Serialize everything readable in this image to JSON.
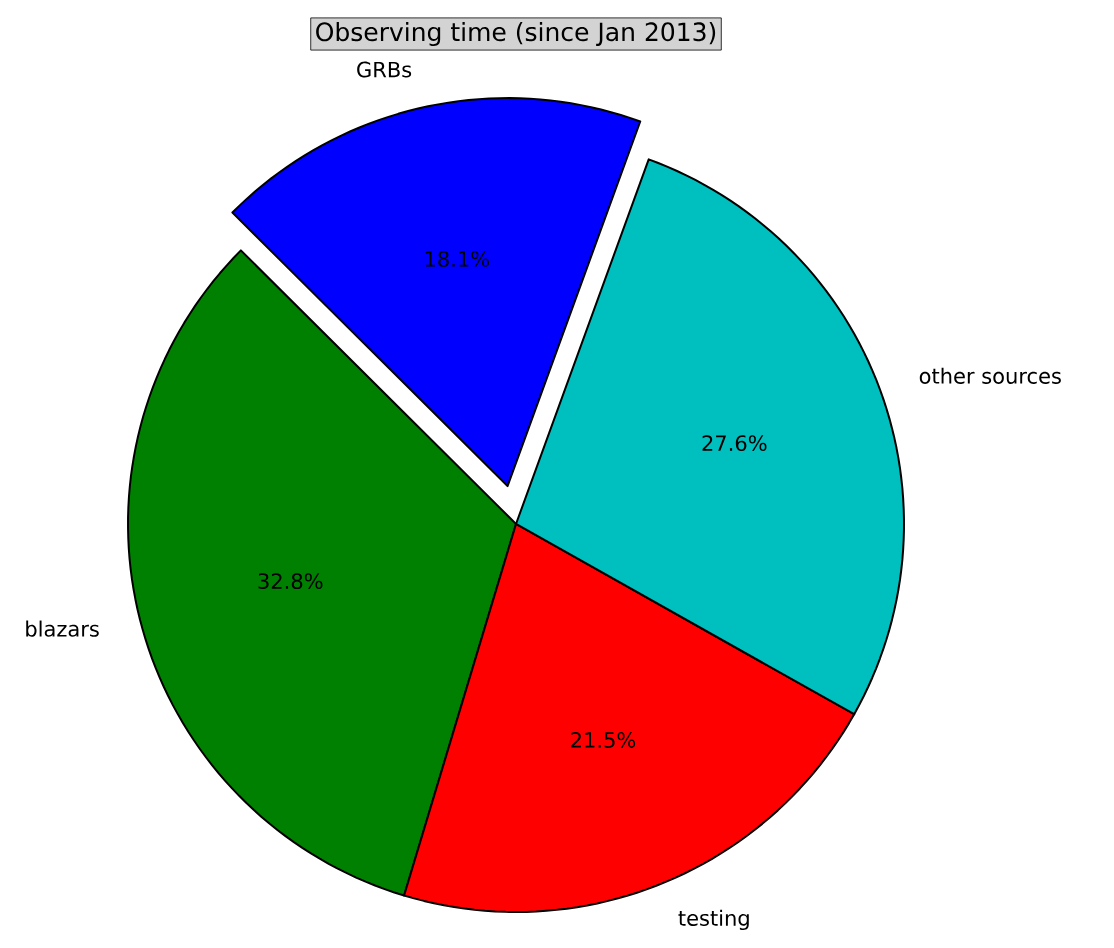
{
  "chart_data": {
    "type": "pie",
    "title": "Observing time (since Jan 2013)",
    "categories": [
      "GRBs",
      "blazars",
      "testing",
      "other sources"
    ],
    "values": [
      18.1,
      32.8,
      21.5,
      27.6
    ],
    "colors": [
      "#0000ff",
      "#008000",
      "#ff0000",
      "#00bfbf"
    ],
    "value_labels": [
      "18.1%",
      "32.8%",
      "21.5%",
      "27.6%"
    ]
  }
}
